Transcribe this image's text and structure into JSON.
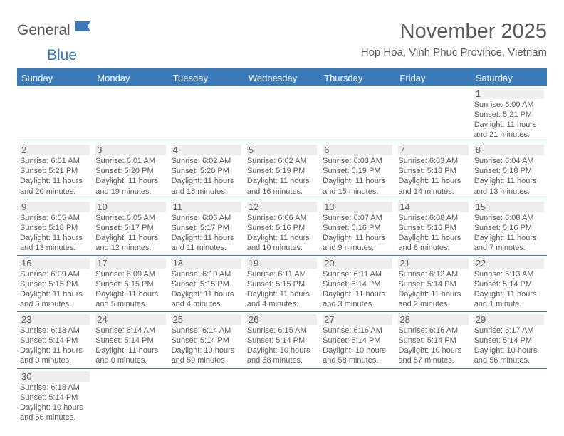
{
  "logo": {
    "part1": "General",
    "part2": "Blue"
  },
  "title": "November 2025",
  "location": "Hop Hoa, Vinh Phuc Province, Vietnam",
  "colors": {
    "accent": "#3a7ab8",
    "text": "#5a5a5a",
    "cell_header_bg": "#eeeeee"
  },
  "weekdays": [
    "Sunday",
    "Monday",
    "Tuesday",
    "Wednesday",
    "Thursday",
    "Friday",
    "Saturday"
  ],
  "grid": [
    [
      {
        "empty": true
      },
      {
        "empty": true
      },
      {
        "empty": true
      },
      {
        "empty": true
      },
      {
        "empty": true
      },
      {
        "empty": true
      },
      {
        "day": "1",
        "sunrise": "Sunrise: 6:00 AM",
        "sunset": "Sunset: 5:21 PM",
        "daylight": "Daylight: 11 hours and 21 minutes."
      }
    ],
    [
      {
        "day": "2",
        "sunrise": "Sunrise: 6:01 AM",
        "sunset": "Sunset: 5:21 PM",
        "daylight": "Daylight: 11 hours and 20 minutes."
      },
      {
        "day": "3",
        "sunrise": "Sunrise: 6:01 AM",
        "sunset": "Sunset: 5:20 PM",
        "daylight": "Daylight: 11 hours and 19 minutes."
      },
      {
        "day": "4",
        "sunrise": "Sunrise: 6:02 AM",
        "sunset": "Sunset: 5:20 PM",
        "daylight": "Daylight: 11 hours and 18 minutes."
      },
      {
        "day": "5",
        "sunrise": "Sunrise: 6:02 AM",
        "sunset": "Sunset: 5:19 PM",
        "daylight": "Daylight: 11 hours and 16 minutes."
      },
      {
        "day": "6",
        "sunrise": "Sunrise: 6:03 AM",
        "sunset": "Sunset: 5:19 PM",
        "daylight": "Daylight: 11 hours and 15 minutes."
      },
      {
        "day": "7",
        "sunrise": "Sunrise: 6:03 AM",
        "sunset": "Sunset: 5:18 PM",
        "daylight": "Daylight: 11 hours and 14 minutes."
      },
      {
        "day": "8",
        "sunrise": "Sunrise: 6:04 AM",
        "sunset": "Sunset: 5:18 PM",
        "daylight": "Daylight: 11 hours and 13 minutes."
      }
    ],
    [
      {
        "day": "9",
        "sunrise": "Sunrise: 6:05 AM",
        "sunset": "Sunset: 5:18 PM",
        "daylight": "Daylight: 11 hours and 13 minutes."
      },
      {
        "day": "10",
        "sunrise": "Sunrise: 6:05 AM",
        "sunset": "Sunset: 5:17 PM",
        "daylight": "Daylight: 11 hours and 12 minutes."
      },
      {
        "day": "11",
        "sunrise": "Sunrise: 6:06 AM",
        "sunset": "Sunset: 5:17 PM",
        "daylight": "Daylight: 11 hours and 11 minutes."
      },
      {
        "day": "12",
        "sunrise": "Sunrise: 6:06 AM",
        "sunset": "Sunset: 5:16 PM",
        "daylight": "Daylight: 11 hours and 10 minutes."
      },
      {
        "day": "13",
        "sunrise": "Sunrise: 6:07 AM",
        "sunset": "Sunset: 5:16 PM",
        "daylight": "Daylight: 11 hours and 9 minutes."
      },
      {
        "day": "14",
        "sunrise": "Sunrise: 6:08 AM",
        "sunset": "Sunset: 5:16 PM",
        "daylight": "Daylight: 11 hours and 8 minutes."
      },
      {
        "day": "15",
        "sunrise": "Sunrise: 6:08 AM",
        "sunset": "Sunset: 5:16 PM",
        "daylight": "Daylight: 11 hours and 7 minutes."
      }
    ],
    [
      {
        "day": "16",
        "sunrise": "Sunrise: 6:09 AM",
        "sunset": "Sunset: 5:15 PM",
        "daylight": "Daylight: 11 hours and 6 minutes."
      },
      {
        "day": "17",
        "sunrise": "Sunrise: 6:09 AM",
        "sunset": "Sunset: 5:15 PM",
        "daylight": "Daylight: 11 hours and 5 minutes."
      },
      {
        "day": "18",
        "sunrise": "Sunrise: 6:10 AM",
        "sunset": "Sunset: 5:15 PM",
        "daylight": "Daylight: 11 hours and 4 minutes."
      },
      {
        "day": "19",
        "sunrise": "Sunrise: 6:11 AM",
        "sunset": "Sunset: 5:15 PM",
        "daylight": "Daylight: 11 hours and 4 minutes."
      },
      {
        "day": "20",
        "sunrise": "Sunrise: 6:11 AM",
        "sunset": "Sunset: 5:14 PM",
        "daylight": "Daylight: 11 hours and 3 minutes."
      },
      {
        "day": "21",
        "sunrise": "Sunrise: 6:12 AM",
        "sunset": "Sunset: 5:14 PM",
        "daylight": "Daylight: 11 hours and 2 minutes."
      },
      {
        "day": "22",
        "sunrise": "Sunrise: 6:13 AM",
        "sunset": "Sunset: 5:14 PM",
        "daylight": "Daylight: 11 hours and 1 minute."
      }
    ],
    [
      {
        "day": "23",
        "sunrise": "Sunrise: 6:13 AM",
        "sunset": "Sunset: 5:14 PM",
        "daylight": "Daylight: 11 hours and 0 minutes."
      },
      {
        "day": "24",
        "sunrise": "Sunrise: 6:14 AM",
        "sunset": "Sunset: 5:14 PM",
        "daylight": "Daylight: 11 hours and 0 minutes."
      },
      {
        "day": "25",
        "sunrise": "Sunrise: 6:14 AM",
        "sunset": "Sunset: 5:14 PM",
        "daylight": "Daylight: 10 hours and 59 minutes."
      },
      {
        "day": "26",
        "sunrise": "Sunrise: 6:15 AM",
        "sunset": "Sunset: 5:14 PM",
        "daylight": "Daylight: 10 hours and 58 minutes."
      },
      {
        "day": "27",
        "sunrise": "Sunrise: 6:16 AM",
        "sunset": "Sunset: 5:14 PM",
        "daylight": "Daylight: 10 hours and 58 minutes."
      },
      {
        "day": "28",
        "sunrise": "Sunrise: 6:16 AM",
        "sunset": "Sunset: 5:14 PM",
        "daylight": "Daylight: 10 hours and 57 minutes."
      },
      {
        "day": "29",
        "sunrise": "Sunrise: 6:17 AM",
        "sunset": "Sunset: 5:14 PM",
        "daylight": "Daylight: 10 hours and 56 minutes."
      }
    ],
    [
      {
        "day": "30",
        "sunrise": "Sunrise: 6:18 AM",
        "sunset": "Sunset: 5:14 PM",
        "daylight": "Daylight: 10 hours and 56 minutes."
      },
      {
        "empty": true
      },
      {
        "empty": true
      },
      {
        "empty": true
      },
      {
        "empty": true
      },
      {
        "empty": true
      },
      {
        "empty": true
      }
    ]
  ]
}
